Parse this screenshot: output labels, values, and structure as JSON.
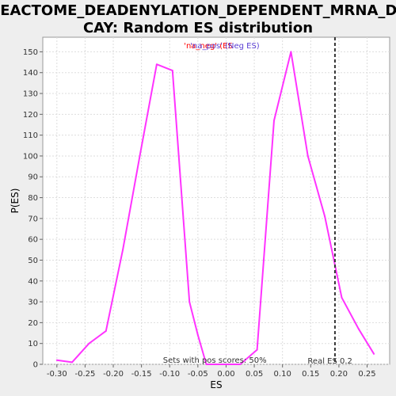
{
  "chart_data": {
    "type": "line",
    "title_lines": [
      "REACTOME_DEADENYLATION_DEPENDENT_MRNA_DE",
      "CAY: Random ES distribution"
    ],
    "xlabel": "ES",
    "ylabel": "P(ES)",
    "xlim": [
      -0.325,
      0.29
    ],
    "ylim": [
      0,
      157
    ],
    "x_ticks": [
      -0.3,
      -0.25,
      -0.2,
      -0.15,
      -0.1,
      -0.05,
      0.0,
      0.05,
      0.1,
      0.15,
      0.2,
      0.25
    ],
    "x_tick_labels": [
      "-0.30",
      "-0.25",
      "-0.20",
      "-0.15",
      "-0.10",
      "-0.05",
      "0.00",
      "0.05",
      "0.10",
      "0.15",
      "0.20",
      "0.25"
    ],
    "y_ticks": [
      0,
      10,
      20,
      30,
      40,
      50,
      60,
      70,
      80,
      90,
      100,
      110,
      120,
      130,
      140,
      150
    ],
    "grid": true,
    "legend": {
      "placement": "top-center",
      "entries": [
        {
          "label": "'na_neg' (ES",
          "color": "#ff0000"
        },
        {
          "label": "'na_pos' (Neg ES)",
          "color": "#5b3fd4"
        }
      ]
    },
    "series": [
      {
        "color": "#ff33ff",
        "x": [
          -0.3,
          -0.273,
          -0.243,
          -0.213,
          -0.183,
          -0.153,
          -0.123,
          -0.095,
          -0.065,
          -0.05,
          -0.035,
          -0.005,
          0.025,
          0.055,
          0.085,
          0.115,
          0.145,
          0.175,
          0.205,
          0.235,
          0.262
        ],
        "y": [
          2,
          1,
          10,
          16,
          55,
          100,
          144,
          141,
          30,
          14,
          0,
          0,
          0,
          7,
          117,
          150,
          100,
          71,
          32,
          17,
          5
        ]
      }
    ],
    "real_es": {
      "x": 0.193,
      "label": "Real ES 0.2"
    },
    "footer_annotation": "Sets with pos scores: 50%"
  }
}
